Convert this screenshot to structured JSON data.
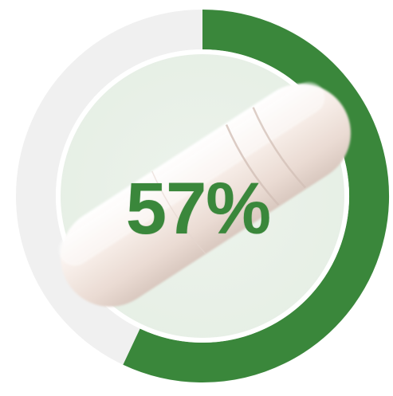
{
  "progress": {
    "value": 57,
    "label": "57%"
  },
  "colors": {
    "ring_fill": "#3a873b",
    "ring_track": "#f0f0f0",
    "inner_disc": "#eaf1e9",
    "text": "#3a873b",
    "pill": "#f3e9e3"
  },
  "icon": "capsule-pill-image"
}
